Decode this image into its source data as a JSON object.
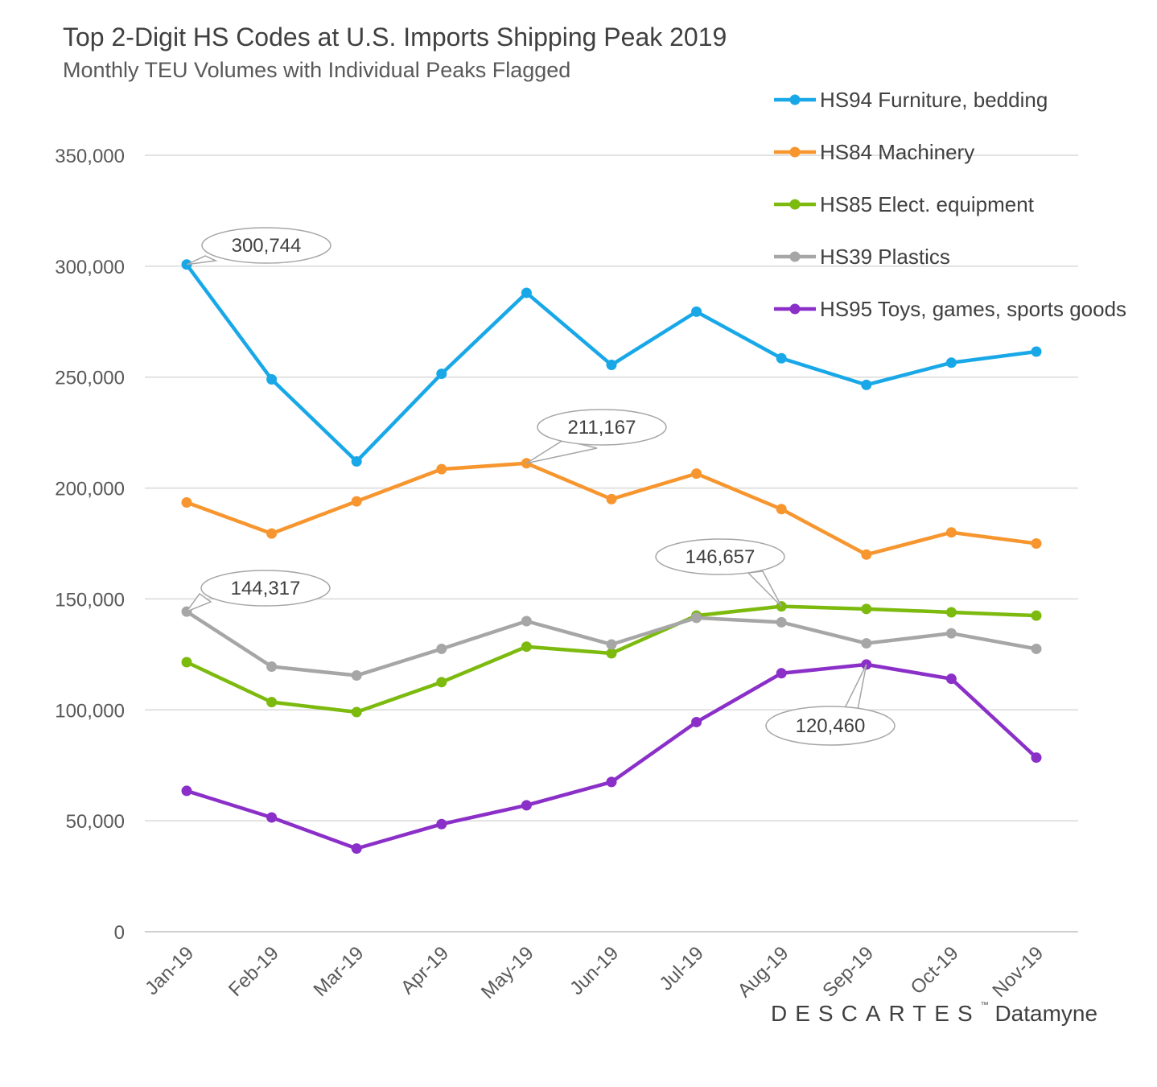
{
  "chart_data": {
    "type": "line",
    "title": "Top 2-Digit HS Codes at U.S. Imports Shipping Peak 2019",
    "subtitle": "Monthly TEU Volumes with Individual Peaks Flagged",
    "xlabel": "",
    "ylabel": "",
    "ylim": [
      0,
      350000
    ],
    "y_ticks": [
      0,
      50000,
      100000,
      150000,
      200000,
      250000,
      300000,
      350000
    ],
    "y_tick_labels": [
      "0",
      "50,000",
      "100,000",
      "150,000",
      "200,000",
      "250,000",
      "300,000",
      "350,000"
    ],
    "grid": true,
    "legend_position": "top-right",
    "categories": [
      "Jan-19",
      "Feb-19",
      "Mar-19",
      "Apr-19",
      "May-19",
      "Jun-19",
      "Jul-19",
      "Aug-19",
      "Sep-19",
      "Oct-19",
      "Nov-19"
    ],
    "series": [
      {
        "name": "HS94 Furniture, bedding",
        "color": "#18a8e8",
        "values": [
          300744,
          249000,
          212000,
          251500,
          288000,
          255500,
          279500,
          258500,
          246500,
          256500,
          261500
        ]
      },
      {
        "name": "HS84 Machinery",
        "color": "#f7962f",
        "values": [
          193500,
          179500,
          194000,
          208500,
          211167,
          195000,
          206500,
          190500,
          170000,
          180000,
          175000
        ]
      },
      {
        "name": "HS85 Elect. equipment",
        "color": "#7cba0e",
        "values": [
          121500,
          103500,
          99000,
          112500,
          128500,
          125500,
          142500,
          146657,
          145500,
          144000,
          142500
        ]
      },
      {
        "name": "HS39 Plastics",
        "color": "#a6a6a6",
        "values": [
          144317,
          119500,
          115500,
          127500,
          140000,
          129500,
          141500,
          139500,
          130000,
          134500,
          127500
        ]
      },
      {
        "name": "HS95 Toys, games, sports goods",
        "color": "#8b2fc9",
        "values": [
          63500,
          51500,
          37500,
          48500,
          57000,
          67500,
          94500,
          116500,
          120460,
          114000,
          78500
        ]
      }
    ],
    "annotations": [
      {
        "text": "300,744",
        "series": 0,
        "index": 0
      },
      {
        "text": "211,167",
        "series": 1,
        "index": 4
      },
      {
        "text": "144,317",
        "series": 3,
        "index": 0
      },
      {
        "text": "146,657",
        "series": 2,
        "index": 7
      },
      {
        "text": "120,460",
        "series": 4,
        "index": 8
      }
    ]
  },
  "brand": {
    "company": "DESC",
    "company_mid": "A",
    "company_tail": "RTES",
    "trademark": "™",
    "product": "Datamyne"
  }
}
